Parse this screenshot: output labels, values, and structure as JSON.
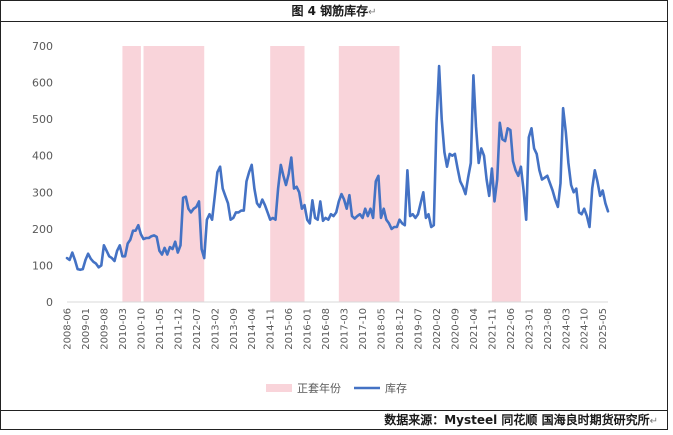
{
  "title": "图 4  钢筋库存",
  "source": "数据来源：Mysteel 同花顺 国海良时期货研究所",
  "return_mark": "↵",
  "colors": {
    "line": "#4472c4",
    "band": "#f9d4da",
    "axis": "#d9d9d9",
    "text": "#595959"
  },
  "chart_data": {
    "type": "line",
    "title": "",
    "xlabel": "",
    "ylabel": "",
    "ylim": [
      0,
      700
    ],
    "yticks": [
      0,
      100,
      200,
      300,
      400,
      500,
      600,
      700
    ],
    "xlim": [
      "2008-06",
      "2025-07"
    ],
    "xticks": [
      "2008-06",
      "2009-01",
      "2009-08",
      "2010-03",
      "2010-10",
      "2011-05",
      "2011-12",
      "2012-07",
      "2013-02",
      "2013-09",
      "2014-04",
      "2014-11",
      "2015-06",
      "2016-01",
      "2016-08",
      "2017-03",
      "2017-10",
      "2018-05",
      "2018-12",
      "2019-07",
      "2020-02",
      "2020-09",
      "2021-04",
      "2021-11",
      "2022-06",
      "2023-01",
      "2023-08",
      "2024-03",
      "2024-10",
      "2025-05"
    ],
    "grid": false,
    "legend_position": "bottom",
    "legend": [
      {
        "name": "正套年份",
        "kind": "band"
      },
      {
        "name": "库存",
        "kind": "line"
      }
    ],
    "bands": [
      {
        "start": "2010-03",
        "end": "2010-10"
      },
      {
        "start": "2010-11",
        "end": "2012-10"
      },
      {
        "start": "2014-11",
        "end": "2015-12"
      },
      {
        "start": "2017-01",
        "end": "2018-12"
      },
      {
        "start": "2021-11",
        "end": "2022-10"
      }
    ],
    "series": [
      {
        "name": "库存",
        "points": [
          [
            "2008-06",
            120
          ],
          [
            "2008-07",
            115
          ],
          [
            "2008-08",
            135
          ],
          [
            "2008-09",
            115
          ],
          [
            "2008-10",
            90
          ],
          [
            "2008-11",
            88
          ],
          [
            "2008-12",
            90
          ],
          [
            "2009-01",
            115
          ],
          [
            "2009-02",
            132
          ],
          [
            "2009-03",
            118
          ],
          [
            "2009-04",
            110
          ],
          [
            "2009-05",
            105
          ],
          [
            "2009-06",
            95
          ],
          [
            "2009-07",
            100
          ],
          [
            "2009-08",
            155
          ],
          [
            "2009-09",
            140
          ],
          [
            "2009-10",
            125
          ],
          [
            "2009-11",
            120
          ],
          [
            "2009-12",
            112
          ],
          [
            "2010-01",
            140
          ],
          [
            "2010-02",
            155
          ],
          [
            "2010-03",
            125
          ],
          [
            "2010-04",
            125
          ],
          [
            "2010-05",
            160
          ],
          [
            "2010-06",
            170
          ],
          [
            "2010-07",
            195
          ],
          [
            "2010-08",
            195
          ],
          [
            "2010-09",
            210
          ],
          [
            "2010-10",
            185
          ],
          [
            "2010-11",
            172
          ],
          [
            "2010-12",
            175
          ],
          [
            "2011-01",
            175
          ],
          [
            "2011-02",
            180
          ],
          [
            "2011-03",
            182
          ],
          [
            "2011-04",
            178
          ],
          [
            "2011-05",
            140
          ],
          [
            "2011-06",
            130
          ],
          [
            "2011-07",
            148
          ],
          [
            "2011-08",
            130
          ],
          [
            "2011-09",
            150
          ],
          [
            "2011-10",
            145
          ],
          [
            "2011-11",
            165
          ],
          [
            "2011-12",
            135
          ],
          [
            "2012-01",
            155
          ],
          [
            "2012-02",
            285
          ],
          [
            "2012-03",
            288
          ],
          [
            "2012-04",
            255
          ],
          [
            "2012-05",
            245
          ],
          [
            "2012-06",
            255
          ],
          [
            "2012-07",
            260
          ],
          [
            "2012-08",
            275
          ],
          [
            "2012-09",
            145
          ],
          [
            "2012-10",
            120
          ],
          [
            "2012-11",
            225
          ],
          [
            "2012-12",
            240
          ],
          [
            "2013-01",
            225
          ],
          [
            "2013-02",
            290
          ],
          [
            "2013-03",
            355
          ],
          [
            "2013-04",
            370
          ],
          [
            "2013-05",
            310
          ],
          [
            "2013-06",
            290
          ],
          [
            "2013-07",
            270
          ],
          [
            "2013-08",
            225
          ],
          [
            "2013-09",
            230
          ],
          [
            "2013-10",
            245
          ],
          [
            "2013-11",
            245
          ],
          [
            "2013-12",
            250
          ],
          [
            "2014-01",
            250
          ],
          [
            "2014-02",
            330
          ],
          [
            "2014-03",
            355
          ],
          [
            "2014-04",
            375
          ],
          [
            "2014-05",
            310
          ],
          [
            "2014-06",
            270
          ],
          [
            "2014-07",
            260
          ],
          [
            "2014-08",
            280
          ],
          [
            "2014-09",
            265
          ],
          [
            "2014-10",
            245
          ],
          [
            "2014-11",
            225
          ],
          [
            "2014-12",
            230
          ],
          [
            "2015-01",
            225
          ],
          [
            "2015-02",
            310
          ],
          [
            "2015-03",
            375
          ],
          [
            "2015-04",
            345
          ],
          [
            "2015-05",
            320
          ],
          [
            "2015-06",
            350
          ],
          [
            "2015-07",
            395
          ],
          [
            "2015-08",
            310
          ],
          [
            "2015-09",
            315
          ],
          [
            "2015-10",
            300
          ],
          [
            "2015-11",
            255
          ],
          [
            "2015-12",
            265
          ],
          [
            "2016-01",
            225
          ],
          [
            "2016-02",
            215
          ],
          [
            "2016-03",
            278
          ],
          [
            "2016-04",
            230
          ],
          [
            "2016-05",
            225
          ],
          [
            "2016-06",
            275
          ],
          [
            "2016-07",
            222
          ],
          [
            "2016-08",
            230
          ],
          [
            "2016-09",
            225
          ],
          [
            "2016-10",
            240
          ],
          [
            "2016-11",
            235
          ],
          [
            "2016-12",
            245
          ],
          [
            "2017-01",
            275
          ],
          [
            "2017-02",
            295
          ],
          [
            "2017-03",
            280
          ],
          [
            "2017-04",
            255
          ],
          [
            "2017-05",
            292
          ],
          [
            "2017-06",
            235
          ],
          [
            "2017-07",
            228
          ],
          [
            "2017-08",
            235
          ],
          [
            "2017-09",
            240
          ],
          [
            "2017-10",
            230
          ],
          [
            "2017-11",
            255
          ],
          [
            "2017-12",
            235
          ],
          [
            "2018-01",
            255
          ],
          [
            "2018-02",
            230
          ],
          [
            "2018-03",
            330
          ],
          [
            "2018-04",
            345
          ],
          [
            "2018-05",
            230
          ],
          [
            "2018-06",
            255
          ],
          [
            "2018-07",
            225
          ],
          [
            "2018-08",
            215
          ],
          [
            "2018-09",
            200
          ],
          [
            "2018-10",
            205
          ],
          [
            "2018-11",
            205
          ],
          [
            "2018-12",
            225
          ],
          [
            "2019-01",
            215
          ],
          [
            "2019-02",
            210
          ],
          [
            "2019-03",
            360
          ],
          [
            "2019-04",
            235
          ],
          [
            "2019-05",
            240
          ],
          [
            "2019-06",
            230
          ],
          [
            "2019-07",
            240
          ],
          [
            "2019-08",
            270
          ],
          [
            "2019-09",
            300
          ],
          [
            "2019-10",
            230
          ],
          [
            "2019-11",
            240
          ],
          [
            "2019-12",
            205
          ],
          [
            "2020-01",
            210
          ],
          [
            "2020-02",
            490
          ],
          [
            "2020-03",
            645
          ],
          [
            "2020-04",
            500
          ],
          [
            "2020-05",
            410
          ],
          [
            "2020-06",
            370
          ],
          [
            "2020-07",
            405
          ],
          [
            "2020-08",
            400
          ],
          [
            "2020-09",
            405
          ],
          [
            "2020-10",
            365
          ],
          [
            "2020-11",
            330
          ],
          [
            "2020-12",
            315
          ],
          [
            "2021-01",
            295
          ],
          [
            "2021-02",
            340
          ],
          [
            "2021-03",
            380
          ],
          [
            "2021-04",
            620
          ],
          [
            "2021-05",
            480
          ],
          [
            "2021-06",
            380
          ],
          [
            "2021-07",
            420
          ],
          [
            "2021-08",
            400
          ],
          [
            "2021-09",
            335
          ],
          [
            "2021-10",
            290
          ],
          [
            "2021-11",
            365
          ],
          [
            "2021-12",
            275
          ],
          [
            "2022-01",
            335
          ],
          [
            "2022-02",
            490
          ],
          [
            "2022-03",
            445
          ],
          [
            "2022-04",
            440
          ],
          [
            "2022-05",
            475
          ],
          [
            "2022-06",
            470
          ],
          [
            "2022-07",
            385
          ],
          [
            "2022-08",
            360
          ],
          [
            "2022-09",
            345
          ],
          [
            "2022-10",
            370
          ],
          [
            "2022-11",
            305
          ],
          [
            "2022-12",
            225
          ],
          [
            "2023-01",
            450
          ],
          [
            "2023-02",
            475
          ],
          [
            "2023-03",
            420
          ],
          [
            "2023-04",
            405
          ],
          [
            "2023-05",
            360
          ],
          [
            "2023-06",
            335
          ],
          [
            "2023-07",
            340
          ],
          [
            "2023-08",
            345
          ],
          [
            "2023-09",
            325
          ],
          [
            "2023-10",
            305
          ],
          [
            "2023-11",
            280
          ],
          [
            "2023-12",
            260
          ],
          [
            "2024-01",
            325
          ],
          [
            "2024-02",
            530
          ],
          [
            "2024-03",
            465
          ],
          [
            "2024-04",
            380
          ],
          [
            "2024-05",
            320
          ],
          [
            "2024-06",
            300
          ],
          [
            "2024-07",
            310
          ],
          [
            "2024-08",
            245
          ],
          [
            "2024-09",
            240
          ],
          [
            "2024-10",
            255
          ],
          [
            "2024-11",
            235
          ],
          [
            "2024-12",
            205
          ],
          [
            "2025-01",
            310
          ],
          [
            "2025-02",
            360
          ],
          [
            "2025-03",
            330
          ],
          [
            "2025-04",
            290
          ],
          [
            "2025-05",
            305
          ],
          [
            "2025-06",
            270
          ],
          [
            "2025-07",
            248
          ]
        ]
      }
    ]
  }
}
